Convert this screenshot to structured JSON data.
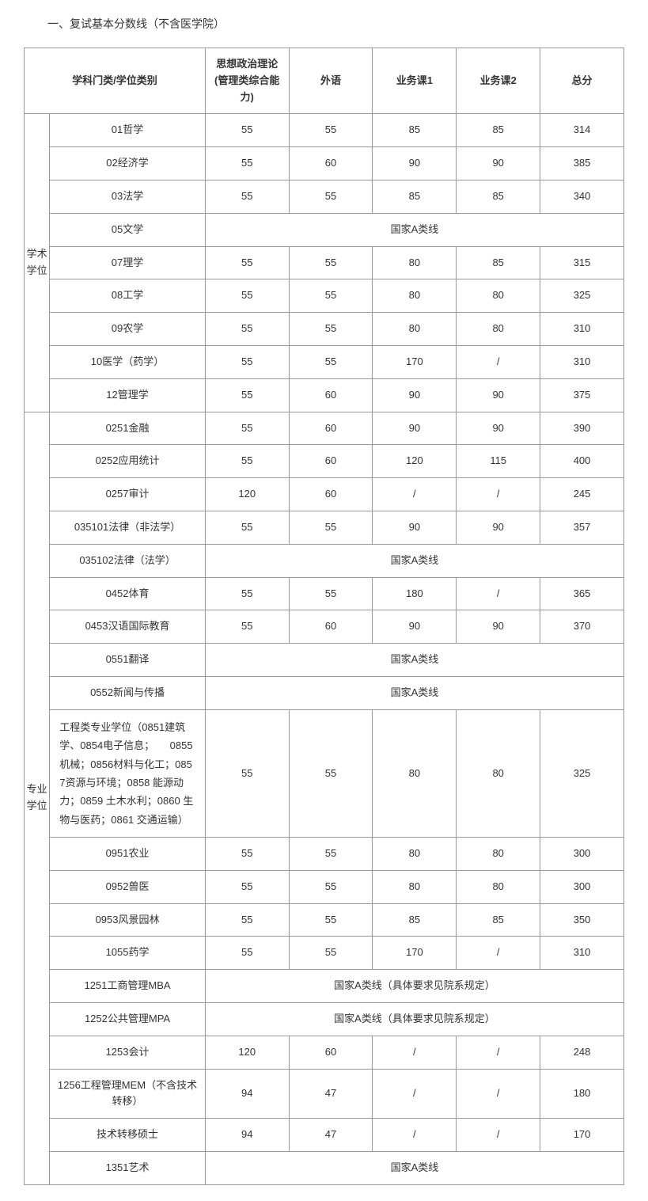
{
  "title": "一、复试基本分数线（不含医学院）",
  "headers": {
    "subject": "学科门类/学位类别",
    "politics": "思想政治理论(管理类综合能力)",
    "foreign": "外语",
    "course1": "业务课1",
    "course2": "业务课2",
    "total": "总分"
  },
  "groups": [
    {
      "name": "学术学位",
      "rows": [
        {
          "subject": "01哲学",
          "c1": "55",
          "c2": "55",
          "c3": "85",
          "c4": "85",
          "c5": "314"
        },
        {
          "subject": "02经济学",
          "c1": "55",
          "c2": "60",
          "c3": "90",
          "c4": "90",
          "c5": "385"
        },
        {
          "subject": "03法学",
          "c1": "55",
          "c2": "55",
          "c3": "85",
          "c4": "85",
          "c5": "340"
        },
        {
          "subject": "05文学",
          "merged": "国家A类线"
        },
        {
          "subject": "07理学",
          "c1": "55",
          "c2": "55",
          "c3": "80",
          "c4": "85",
          "c5": "315"
        },
        {
          "subject": "08工学",
          "c1": "55",
          "c2": "55",
          "c3": "80",
          "c4": "80",
          "c5": "325"
        },
        {
          "subject": "09农学",
          "c1": "55",
          "c2": "55",
          "c3": "80",
          "c4": "80",
          "c5": "310"
        },
        {
          "subject": "10医学（药学）",
          "c1": "55",
          "c2": "55",
          "c3": "170",
          "c4": "/",
          "c5": "310"
        },
        {
          "subject": "12管理学",
          "c1": "55",
          "c2": "60",
          "c3": "90",
          "c4": "90",
          "c5": "375"
        }
      ]
    },
    {
      "name": "专业学位",
      "rows": [
        {
          "subject": "0251金融",
          "c1": "55",
          "c2": "60",
          "c3": "90",
          "c4": "90",
          "c5": "390"
        },
        {
          "subject": "0252应用统计",
          "c1": "55",
          "c2": "60",
          "c3": "120",
          "c4": "115",
          "c5": "400"
        },
        {
          "subject": "0257审计",
          "c1": "120",
          "c2": "60",
          "c3": "/",
          "c4": "/",
          "c5": "245"
        },
        {
          "subject": "035101法律（非法学）",
          "c1": "55",
          "c2": "55",
          "c3": "90",
          "c4": "90",
          "c5": "357"
        },
        {
          "subject": "035102法律（法学）",
          "merged": "国家A类线"
        },
        {
          "subject": "0452体育",
          "c1": "55",
          "c2": "55",
          "c3": "180",
          "c4": "/",
          "c5": "365"
        },
        {
          "subject": "0453汉语国际教育",
          "c1": "55",
          "c2": "60",
          "c3": "90",
          "c4": "90",
          "c5": "370"
        },
        {
          "subject": "0551翻译",
          "merged": "国家A类线"
        },
        {
          "subject": "0552新闻与传播",
          "merged": "国家A类线"
        },
        {
          "subject": "工程类专业学位（0851建筑学、0854电子信息；　　0855机械；0856材料与化工；0857资源与环境；0858 能源动力；0859 土木水利；0860 生物与医药；0861 交通运输）",
          "long": true,
          "c1": "55",
          "c2": "55",
          "c3": "80",
          "c4": "80",
          "c5": "325"
        },
        {
          "subject": "0951农业",
          "c1": "55",
          "c2": "55",
          "c3": "80",
          "c4": "80",
          "c5": "300"
        },
        {
          "subject": "0952兽医",
          "c1": "55",
          "c2": "55",
          "c3": "80",
          "c4": "80",
          "c5": "300"
        },
        {
          "subject": "0953风景园林",
          "c1": "55",
          "c2": "55",
          "c3": "85",
          "c4": "85",
          "c5": "350"
        },
        {
          "subject": "1055药学",
          "c1": "55",
          "c2": "55",
          "c3": "170",
          "c4": "/",
          "c5": "310"
        },
        {
          "subject": "1251工商管理MBA",
          "merged": "国家A类线（具体要求见院系规定）"
        },
        {
          "subject": "1252公共管理MPA",
          "merged": "国家A类线（具体要求见院系规定）"
        },
        {
          "subject": "1253会计",
          "c1": "120",
          "c2": "60",
          "c3": "/",
          "c4": "/",
          "c5": "248"
        },
        {
          "subject": "1256工程管理MEM（不含技术转移）",
          "c1": "94",
          "c2": "47",
          "c3": "/",
          "c4": "/",
          "c5": "180"
        },
        {
          "subject": "技术转移硕士",
          "c1": "94",
          "c2": "47",
          "c3": "/",
          "c4": "/",
          "c5": "170"
        },
        {
          "subject": "1351艺术",
          "merged": "国家A类线"
        }
      ]
    }
  ]
}
